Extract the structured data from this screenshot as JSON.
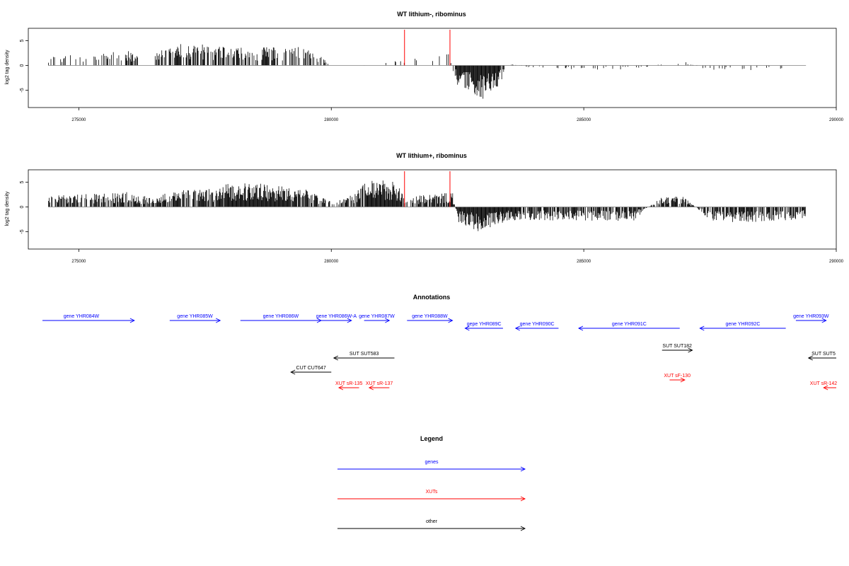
{
  "colors": {
    "genes": "#0000ff",
    "xuts": "#ff0000",
    "other": "#000000",
    "marker": "#ff0000",
    "signal": "#000000",
    "baseline": "#808080"
  },
  "chart_data": [
    {
      "type": "bar",
      "title": "WT lithium-, ribominus",
      "ylabel": "log2 tag density",
      "xlim": [
        274000,
        290000
      ],
      "ylim": [
        -8.5,
        7.5
      ],
      "x_ticks": [
        275000,
        280000,
        285000,
        290000
      ],
      "x_tick_labels": [
        "275000",
        "280000",
        "285000",
        "290000"
      ],
      "y_ticks": [
        5,
        0,
        -5
      ],
      "y_tick_labels": [
        "5",
        "0",
        "-5"
      ],
      "baseline_range": [
        274400,
        289400
      ],
      "markers_x": [
        281450,
        282350
      ],
      "profile": {
        "x": [
          274450,
          274700,
          275000,
          275200,
          275500,
          276000,
          276500,
          276700,
          277000,
          277500,
          278000,
          278500,
          279000,
          279500,
          280000,
          280500,
          281000,
          281500,
          282000,
          282300,
          282500,
          282800,
          283000,
          283300,
          283500,
          284000,
          285000,
          286000,
          286500,
          287000,
          287500,
          288000,
          288500,
          289000
        ],
        "y": [
          1.5,
          1.6,
          1.5,
          1.8,
          1.8,
          2.2,
          1.8,
          2.4,
          3.2,
          3.0,
          2.6,
          2.5,
          2.8,
          2.6,
          0.5,
          -0.3,
          0.8,
          0.8,
          1.6,
          2.2,
          -3.0,
          -4.0,
          -5.0,
          -3.5,
          0.3,
          -0.4,
          -0.6,
          -0.6,
          0.2,
          0.6,
          -0.8,
          -0.8,
          -0.6,
          -0.5
        ]
      },
      "density": {
        "x": [
          274450,
          274700,
          275200,
          275500,
          276500,
          276700,
          277000,
          277500,
          278000,
          278500,
          279000,
          279500,
          279900,
          280000,
          280500,
          281000,
          281500,
          282000,
          282300,
          282500,
          283000,
          283300,
          283500,
          284000,
          285000,
          286000,
          287000,
          288000,
          289000
        ],
        "y": [
          0.25,
          0.3,
          0.3,
          0.35,
          0.45,
          0.55,
          0.6,
          0.55,
          0.45,
          0.55,
          0.55,
          0.5,
          0.5,
          0.06,
          0.08,
          0.08,
          0.12,
          0.2,
          0.3,
          1.0,
          1.0,
          1.0,
          0.12,
          0.15,
          0.15,
          0.15,
          0.15,
          0.12,
          0.1
        ]
      },
      "gaps": [
        [
          276200,
          276500
        ],
        [
          280000,
          280400
        ],
        [
          281700,
          282000
        ],
        [
          289100,
          290000
        ]
      ]
    },
    {
      "type": "bar",
      "title": "WT lithium+, ribominus",
      "ylabel": "log2 tag density",
      "xlim": [
        274000,
        290000
      ],
      "ylim": [
        -8.5,
        7.5
      ],
      "x_ticks": [
        275000,
        280000,
        285000,
        290000
      ],
      "x_tick_labels": [
        "275000",
        "280000",
        "285000",
        "290000"
      ],
      "y_ticks": [
        5,
        0,
        -5
      ],
      "y_tick_labels": [
        "5",
        "0",
        "-5"
      ],
      "baseline_range": [
        274400,
        289400
      ],
      "markers_x": [
        281450,
        282350
      ],
      "profile": {
        "x": [
          274450,
          275000,
          275500,
          276000,
          276500,
          276700,
          277000,
          277500,
          278000,
          278500,
          279000,
          279500,
          280000,
          280300,
          280700,
          281000,
          281300,
          281500,
          282000,
          282400,
          282500,
          283000,
          283500,
          284000,
          285000,
          286000,
          286500,
          287000,
          287500,
          288000,
          288500,
          289400
        ],
        "y": [
          1.6,
          1.8,
          2.0,
          2.2,
          1.2,
          2.2,
          2.6,
          2.5,
          3.4,
          3.5,
          3.1,
          2.6,
          0.8,
          1.2,
          3.8,
          4.0,
          3.6,
          1.5,
          1.8,
          2.2,
          -2.2,
          -3.8,
          -2.0,
          -2.0,
          -2.0,
          -2.0,
          1.5,
          1.5,
          -2.0,
          -2.2,
          -2.2,
          -1.8
        ]
      },
      "density": {
        "x": [
          274450,
          275000,
          276000,
          276700,
          277000,
          277500,
          277800,
          278000,
          279000,
          279500,
          280000,
          280600,
          280800,
          281300,
          281500,
          282000,
          282400,
          282500,
          283500,
          284000,
          285000,
          286000,
          287000,
          288000,
          289400
        ],
        "y": [
          0.55,
          0.6,
          0.65,
          0.75,
          0.75,
          0.7,
          0.85,
          1.0,
          1.0,
          0.8,
          0.35,
          0.8,
          1.0,
          1.0,
          0.6,
          0.6,
          0.7,
          1.0,
          1.0,
          0.7,
          0.7,
          0.75,
          0.75,
          0.75,
          0.7
        ]
      },
      "gaps": [
        [
          289400,
          290000
        ]
      ]
    }
  ],
  "annotations": {
    "title": "Annotations",
    "rows": [
      {
        "row": 0,
        "color": "genes",
        "items": [
          {
            "label": "gene YHR084W",
            "start": 274000,
            "end": 276100,
            "dir": "+"
          },
          {
            "label": "gene YHR085W",
            "start": 276800,
            "end": 277800,
            "dir": "+"
          },
          {
            "label": "gene YHR086W",
            "start": 278200,
            "end": 279800,
            "dir": "+"
          },
          {
            "label": "gene YHR086W-A",
            "start": 279800,
            "end": 280400,
            "dir": "+"
          },
          {
            "label": "gene YHR087W",
            "start": 280650,
            "end": 281150,
            "dir": "+"
          },
          {
            "label": "gene YHR088W",
            "start": 281500,
            "end": 282400,
            "dir": "+"
          },
          {
            "label": "gene YHR093W",
            "start": 289200,
            "end": 289800,
            "dir": "+"
          }
        ]
      },
      {
        "row": 1,
        "color": "genes",
        "items": [
          {
            "label": "gepe YHR089C",
            "start": 282650,
            "end": 283400,
            "dir": "-"
          },
          {
            "label": "gene YHR090C",
            "start": 283650,
            "end": 284500,
            "dir": "-"
          },
          {
            "label": "gene YHR091C",
            "start": 284900,
            "end": 286900,
            "dir": "-"
          },
          {
            "label": "gene YHR092C",
            "start": 287300,
            "end": 289000,
            "dir": "-"
          }
        ]
      },
      {
        "row": 2,
        "color": "other",
        "items": [
          {
            "label": "SUT SUT182",
            "start": 286550,
            "end": 287150,
            "dir": "+"
          }
        ]
      },
      {
        "row": 3,
        "color": "other",
        "items": [
          {
            "label": "SUT SUT583",
            "start": 280050,
            "end": 281250,
            "dir": "-"
          },
          {
            "label": "SUT SUT5",
            "start": 289450,
            "end": 290100,
            "dir": "-"
          }
        ]
      },
      {
        "row": 4,
        "color": "other",
        "items": [
          {
            "label": "CUT CUT647",
            "start": 279200,
            "end": 280000,
            "dir": "-"
          }
        ]
      },
      {
        "row": 5,
        "color": "xuts",
        "items": [
          {
            "label": "XUT sF-130",
            "start": 286700,
            "end": 287000,
            "dir": "+"
          }
        ]
      },
      {
        "row": 6,
        "color": "xuts",
        "items": [
          {
            "label": "XUT sR-135",
            "start": 280150,
            "end": 280550,
            "dir": "-"
          },
          {
            "label": "XUT sR-137",
            "start": 280750,
            "end": 281150,
            "dir": "-"
          },
          {
            "label": "XUT sR-142",
            "start": 289750,
            "end": 290100,
            "dir": "-"
          }
        ]
      }
    ]
  },
  "legend": {
    "title": "Legend",
    "items": [
      {
        "label": "genes",
        "color": "genes"
      },
      {
        "label": "XUTs",
        "color": "xuts"
      },
      {
        "label": "other",
        "color": "other"
      }
    ]
  }
}
